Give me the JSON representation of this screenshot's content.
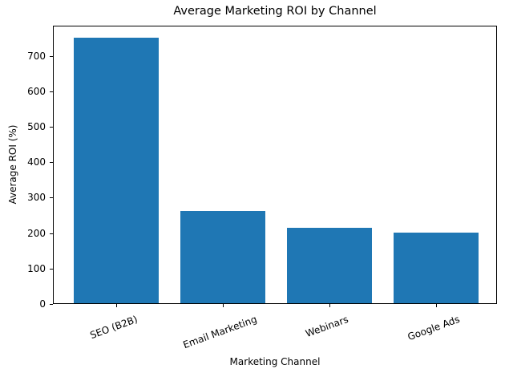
{
  "chart_data": {
    "type": "bar",
    "title": "Average Marketing ROI by Channel",
    "xlabel": "Marketing Channel",
    "ylabel": "Average ROI (%)",
    "categories": [
      "SEO (B2B)",
      "Email Marketing",
      "Webinars",
      "Google Ads"
    ],
    "values": [
      748,
      261,
      213,
      200
    ],
    "ylim": [
      0,
      785
    ],
    "yticks": [
      0,
      100,
      200,
      300,
      400,
      500,
      600,
      700
    ],
    "xtick_rotation": -20,
    "grid": false,
    "legend": null,
    "bar_color": "#1f77b4"
  },
  "ytick_labels": [
    "0",
    "100",
    "200",
    "300",
    "400",
    "500",
    "600",
    "700"
  ]
}
